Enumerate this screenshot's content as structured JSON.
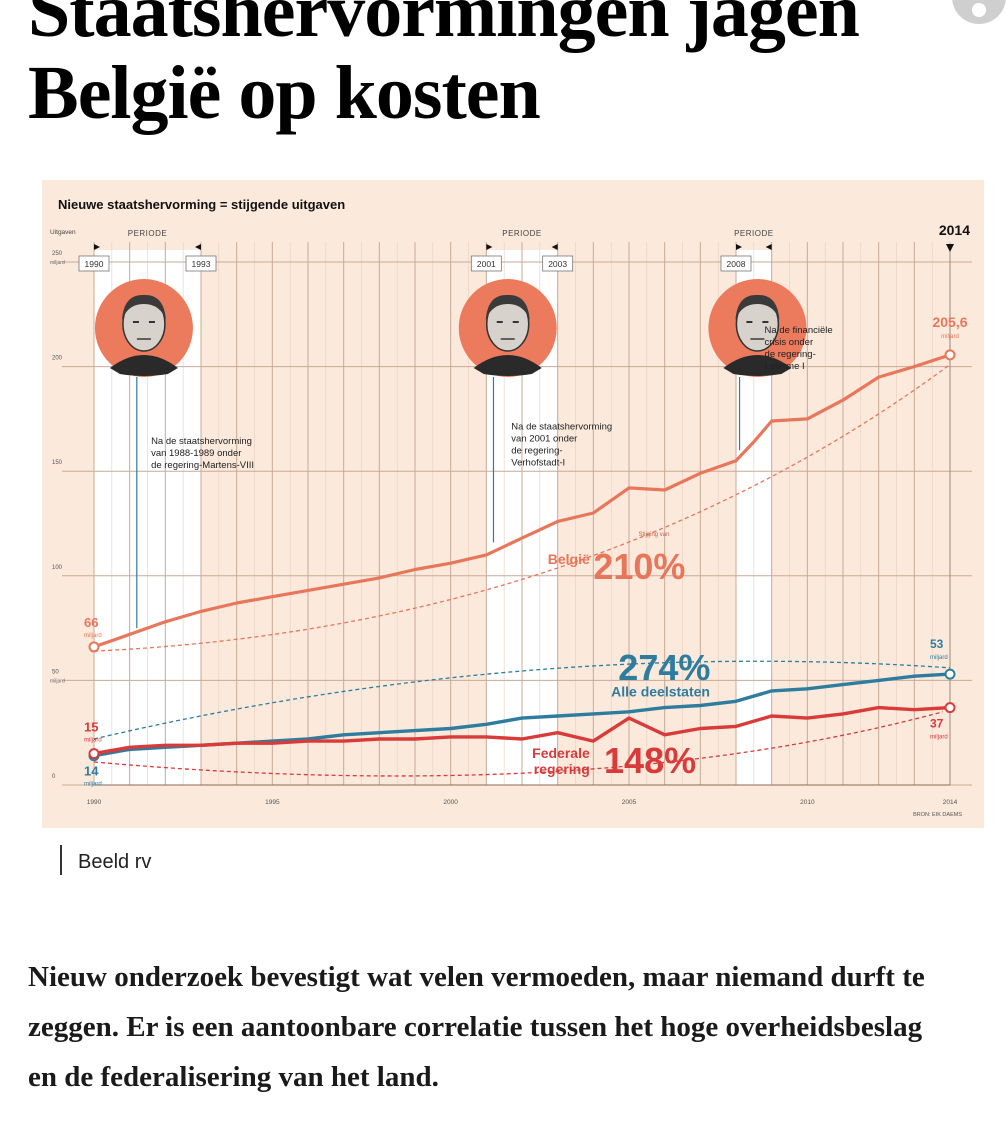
{
  "article": {
    "headline_line1": "Staatshervormingen jagen",
    "headline_line2": "België op kosten",
    "caption": "Beeld rv",
    "intro": "Nieuw onderzoek bevestigt wat velen vermoeden, maar niemand durft te zeggen. Er is een aantoonbare correlatie tussen het hoge overheidsbeslag en de federalisering van het land."
  },
  "chart_data": {
    "type": "line",
    "title": "Nieuwe staatshervorming = stijgende uitgaven",
    "ylabel": "Uitgaven",
    "ylabel_unit": "miljard",
    "ylim": [
      0,
      250
    ],
    "xlim": [
      1990,
      2014
    ],
    "x_ticks": [
      "1990",
      "1995",
      "2000",
      "2005",
      "2010",
      "2014"
    ],
    "y_ticks": [
      {
        "value": 250,
        "label": "250",
        "sub": "miljard"
      },
      {
        "value": 200,
        "label": "200",
        "sub": ""
      },
      {
        "value": 150,
        "label": "150",
        "sub": ""
      },
      {
        "value": 100,
        "label": "100",
        "sub": ""
      },
      {
        "value": 50,
        "label": "50",
        "sub": "miljard"
      },
      {
        "value": 0,
        "label": "0",
        "sub": ""
      }
    ],
    "year_highlight": "2014",
    "periods": [
      {
        "label": "PERIODE",
        "start": 1990,
        "end": 1993,
        "start_label": "1990",
        "end_label": "1993"
      },
      {
        "label": "PERIODE",
        "start": 2001,
        "end": 2003,
        "start_label": "2001",
        "end_label": "2003"
      },
      {
        "label": "PERIODE",
        "start": 2008,
        "end": 2009,
        "start_label": "2008",
        "end_label": ""
      }
    ],
    "annotations": [
      {
        "year": 1991.2,
        "value": 75,
        "text_year": 1991.6,
        "text_value": 163,
        "lines": [
          "Na de staatshervorming",
          "van 1988-1989 onder",
          "de regering-Martens-VIII"
        ]
      },
      {
        "year": 2001.2,
        "value": 116,
        "text_year": 2001.7,
        "text_value": 170,
        "lines": [
          "Na de staatshervorming",
          "van 2001 onder",
          "de regering-",
          "Verhofstadt-I"
        ]
      },
      {
        "year": 2008.1,
        "value": 160,
        "text_year": 2008.8,
        "text_value": 216,
        "lines": [
          "Na de financiële",
          "crisis onder",
          "de regering-",
          "Leterme I"
        ]
      }
    ],
    "series": [
      {
        "name": "België",
        "color": "#e8765a",
        "width": 3.2,
        "x": [
          1990,
          1991,
          1992,
          1993,
          1994,
          1995,
          1996,
          1997,
          1998,
          1999,
          2000,
          2001,
          2002,
          2003,
          2004,
          2005,
          2006,
          2007,
          2008,
          2008.5,
          2009,
          2010,
          2011,
          2012,
          2013,
          2014
        ],
        "y": [
          66,
          72,
          78,
          83,
          87,
          90,
          93,
          96,
          99,
          103,
          106,
          110,
          118,
          126,
          130,
          142,
          141,
          149,
          155,
          164,
          174,
          175,
          184,
          195,
          200,
          205.6
        ],
        "start_label": "66",
        "end_label": "205,6",
        "unit": "miljard",
        "growth_label": "210%",
        "growth_caption": "Stijging van"
      },
      {
        "name": "Alle deelstaten",
        "color": "#2e7d9e",
        "width": 3.4,
        "x": [
          1990,
          1991,
          1992,
          1993,
          1994,
          1995,
          1996,
          1997,
          1998,
          1999,
          2000,
          2001,
          2002,
          2003,
          2004,
          2005,
          2006,
          2007,
          2008,
          2009,
          2010,
          2011,
          2012,
          2013,
          2014
        ],
        "y": [
          14,
          17,
          18,
          19,
          20,
          21,
          22,
          24,
          25,
          26,
          27,
          29,
          32,
          33,
          34,
          35,
          37,
          38,
          40,
          45,
          46,
          48,
          50,
          52,
          53
        ],
        "start_label": "14",
        "end_label": "53",
        "unit": "miljard",
        "growth_label": "274%"
      },
      {
        "name": "Federale regering",
        "color": "#d93a3a",
        "width": 3.4,
        "x": [
          1990,
          1991,
          1992,
          1993,
          1994,
          1995,
          1996,
          1997,
          1998,
          1999,
          2000,
          2001,
          2002,
          2003,
          2004,
          2005,
          2006,
          2007,
          2008,
          2009,
          2010,
          2011,
          2012,
          2013,
          2014
        ],
        "y": [
          15,
          18,
          19,
          19,
          20,
          20,
          21,
          21,
          22,
          22,
          23,
          23,
          22,
          25,
          21,
          32,
          24,
          27,
          28,
          33,
          32,
          34,
          37,
          36,
          37
        ],
        "start_label": "15",
        "end_label": "37",
        "unit": "miljard",
        "growth_label": "148%"
      }
    ],
    "source": "BRON: EIK DAEMS"
  }
}
